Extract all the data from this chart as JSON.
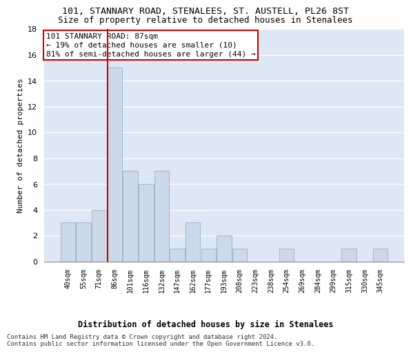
{
  "title1": "101, STANNARY ROAD, STENALEES, ST. AUSTELL, PL26 8ST",
  "title2": "Size of property relative to detached houses in Stenalees",
  "xlabel": "Distribution of detached houses by size in Stenalees",
  "ylabel": "Number of detached properties",
  "categories": [
    "40sqm",
    "55sqm",
    "71sqm",
    "86sqm",
    "101sqm",
    "116sqm",
    "132sqm",
    "147sqm",
    "162sqm",
    "177sqm",
    "193sqm",
    "208sqm",
    "223sqm",
    "238sqm",
    "254sqm",
    "269sqm",
    "284sqm",
    "299sqm",
    "315sqm",
    "330sqm",
    "345sqm"
  ],
  "values": [
    3,
    3,
    4,
    15,
    7,
    6,
    7,
    1,
    3,
    1,
    2,
    1,
    0,
    0,
    1,
    0,
    0,
    0,
    1,
    0,
    1
  ],
  "bar_color": "#ccd9e8",
  "bar_edge_color": "#9ab0c8",
  "vline_x": 3.0,
  "vline_color": "#cc0000",
  "annotation_box_text": "101 STANNARY ROAD: 87sqm\n← 19% of detached houses are smaller (10)\n81% of semi-detached houses are larger (44) →",
  "annotation_box_color": "#ffffff",
  "annotation_box_edge_color": "#cc0000",
  "ylim": [
    0,
    18
  ],
  "yticks": [
    0,
    2,
    4,
    6,
    8,
    10,
    12,
    14,
    16,
    18
  ],
  "bg_color": "#dde8f4",
  "footer_line1": "Contains HM Land Registry data © Crown copyright and database right 2024.",
  "footer_line2": "Contains public sector information licensed under the Open Government Licence v3.0.",
  "title1_fontsize": 9.5,
  "title2_fontsize": 9,
  "xlabel_fontsize": 8.5,
  "ylabel_fontsize": 8,
  "annotation_fontsize": 8,
  "footer_fontsize": 6.5
}
